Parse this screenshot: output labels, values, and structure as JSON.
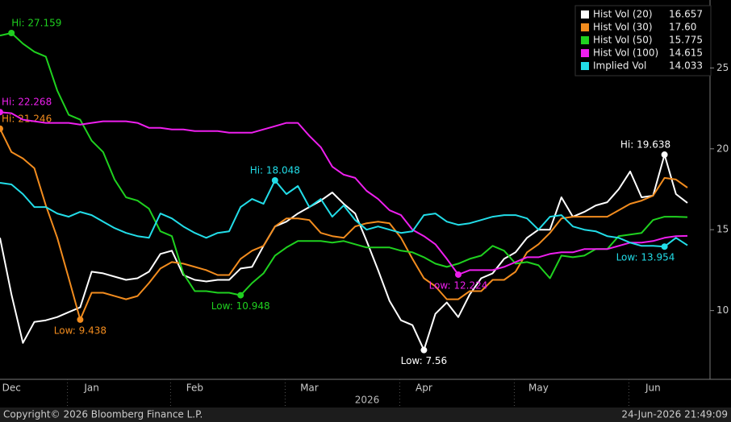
{
  "chart_data": {
    "type": "line",
    "categories": [
      null,
      "Dec",
      null,
      null,
      null,
      null,
      null,
      null,
      "Jan",
      null,
      null,
      null,
      null,
      null,
      null,
      null,
      null,
      "Feb",
      null,
      null,
      null,
      null,
      null,
      null,
      null,
      null,
      null,
      "Mar",
      null,
      null,
      null,
      null,
      null,
      null,
      null,
      null,
      null,
      "Apr",
      null,
      null,
      null,
      null,
      null,
      null,
      null,
      null,
      null,
      "May",
      null,
      null,
      null,
      null,
      null,
      null,
      null,
      null,
      null,
      "Jun",
      null,
      null,
      null
    ],
    "x_label": "2026",
    "ylim": [
      5.8,
      29.2
    ],
    "yticks": [
      10,
      15,
      20,
      25
    ],
    "grid": false,
    "legend": "top-right",
    "series": [
      {
        "name": "Hist Vol (20)",
        "color": "#ffffff",
        "legend_value": "16.657",
        "values": [
          14.5,
          11.0,
          8.0,
          9.3,
          9.4,
          9.6,
          9.9,
          10.2,
          12.4,
          12.3,
          12.1,
          11.9,
          12.0,
          12.4,
          13.5,
          13.7,
          12.2,
          11.9,
          11.8,
          11.9,
          11.9,
          12.6,
          12.7,
          14.0,
          15.2,
          15.5,
          16.0,
          16.4,
          16.8,
          17.3,
          16.6,
          16.0,
          14.3,
          12.5,
          10.6,
          9.4,
          9.1,
          7.56,
          9.8,
          10.5,
          9.6,
          11.0,
          12.0,
          12.3,
          13.2,
          13.6,
          14.5,
          15.0,
          15.0,
          17.0,
          15.8,
          16.1,
          16.5,
          16.7,
          17.5,
          18.6,
          17.0,
          17.1,
          19.638,
          17.2,
          16.657
        ],
        "value_labels": [
          null,
          null,
          null,
          null,
          null,
          null,
          null,
          null,
          null,
          null,
          null,
          null,
          null,
          null,
          null,
          null,
          null,
          null,
          null,
          null,
          null,
          null,
          null,
          null,
          null,
          null,
          null,
          null,
          null,
          null,
          null,
          null,
          null,
          null,
          null,
          null,
          null,
          "Low: 7.56",
          null,
          null,
          null,
          null,
          null,
          null,
          null,
          null,
          null,
          null,
          null,
          null,
          null,
          null,
          null,
          null,
          null,
          null,
          null,
          null,
          "Hi: 19.638",
          null,
          null
        ]
      },
      {
        "name": "Hist Vol (30)",
        "color": "#f28c1e",
        "legend_value": "17.60",
        "values": [
          21.246,
          19.8,
          19.4,
          18.8,
          16.5,
          14.5,
          12.0,
          9.438,
          11.1,
          11.1,
          10.9,
          10.7,
          10.9,
          11.7,
          12.6,
          13.0,
          12.9,
          12.7,
          12.5,
          12.2,
          12.2,
          13.2,
          13.7,
          14.0,
          15.2,
          15.7,
          15.7,
          15.6,
          14.8,
          14.6,
          14.5,
          15.2,
          15.4,
          15.5,
          15.4,
          14.5,
          13.2,
          12.0,
          11.5,
          10.7,
          10.7,
          11.2,
          11.2,
          11.9,
          11.9,
          12.4,
          13.6,
          14.1,
          14.8,
          15.7,
          15.8,
          15.8,
          15.8,
          15.8,
          16.2,
          16.6,
          16.8,
          17.1,
          18.2,
          18.1,
          17.6
        ],
        "value_labels": [
          "Hi: 21.246",
          null,
          null,
          null,
          null,
          null,
          null,
          "Low: 9.438",
          null,
          null,
          null,
          null,
          null,
          null,
          null,
          null,
          null,
          null,
          null,
          null,
          null,
          null,
          null,
          null,
          null,
          null,
          null,
          null,
          null,
          null,
          null,
          null,
          null,
          null,
          null,
          null,
          null,
          null,
          null,
          null,
          null,
          null,
          null,
          null,
          null,
          null,
          null,
          null,
          null,
          null,
          null,
          null,
          null,
          null,
          null,
          null,
          null,
          null,
          null,
          null,
          null
        ]
      },
      {
        "name": "Hist Vol (50)",
        "color": "#1fd11f",
        "legend_value": "15.775",
        "values": [
          27.0,
          27.159,
          26.5,
          26.0,
          25.7,
          23.6,
          22.1,
          21.8,
          20.5,
          19.8,
          18.1,
          17.0,
          16.8,
          16.3,
          14.9,
          14.6,
          12.3,
          11.2,
          11.2,
          11.1,
          11.1,
          10.948,
          11.7,
          12.3,
          13.4,
          13.9,
          14.3,
          14.3,
          14.3,
          14.2,
          14.3,
          14.1,
          13.9,
          13.9,
          13.9,
          13.7,
          13.6,
          13.3,
          12.9,
          12.7,
          12.9,
          13.2,
          13.4,
          14.0,
          13.7,
          12.9,
          13.0,
          12.8,
          12.0,
          13.4,
          13.3,
          13.4,
          13.8,
          13.8,
          14.6,
          14.7,
          14.8,
          15.6,
          15.8,
          15.8,
          15.775
        ],
        "value_labels": [
          null,
          "Hi: 27.159",
          null,
          null,
          null,
          null,
          null,
          null,
          null,
          null,
          null,
          null,
          null,
          null,
          null,
          null,
          null,
          null,
          null,
          null,
          null,
          "Low: 10.948",
          null,
          null,
          null,
          null,
          null,
          null,
          null,
          null,
          null,
          null,
          null,
          null,
          null,
          null,
          null,
          null,
          null,
          null,
          null,
          null,
          null,
          null,
          null,
          null,
          null,
          null,
          null,
          null,
          null,
          null,
          null,
          null,
          null,
          null,
          null,
          null,
          null,
          null,
          null
        ]
      },
      {
        "name": "Hist Vol (100)",
        "color": "#ee1fee",
        "legend_value": "14.615",
        "values": [
          22.268,
          22.2,
          21.8,
          21.7,
          21.6,
          21.6,
          21.6,
          21.5,
          21.6,
          21.7,
          21.7,
          21.7,
          21.6,
          21.3,
          21.3,
          21.2,
          21.2,
          21.1,
          21.1,
          21.1,
          21.0,
          21.0,
          21.0,
          21.2,
          21.4,
          21.6,
          21.6,
          20.8,
          20.1,
          18.9,
          18.4,
          18.2,
          17.4,
          16.9,
          16.2,
          15.9,
          15.0,
          14.6,
          14.1,
          13.2,
          12.224,
          12.5,
          12.5,
          12.5,
          12.7,
          13.0,
          13.3,
          13.3,
          13.5,
          13.6,
          13.6,
          13.8,
          13.8,
          13.8,
          14.0,
          14.2,
          14.2,
          14.3,
          14.5,
          14.6,
          14.615
        ],
        "value_labels": [
          "Hi: 22.268",
          null,
          null,
          null,
          null,
          null,
          null,
          null,
          null,
          null,
          null,
          null,
          null,
          null,
          null,
          null,
          null,
          null,
          null,
          null,
          null,
          null,
          null,
          null,
          null,
          null,
          null,
          null,
          null,
          null,
          null,
          null,
          null,
          null,
          null,
          null,
          null,
          null,
          null,
          null,
          "Low: 12.224",
          null,
          null,
          null,
          null,
          null,
          null,
          null,
          null,
          null,
          null,
          null,
          null,
          null,
          null,
          null,
          null,
          null,
          null,
          null,
          null
        ]
      },
      {
        "name": "Implied Vol",
        "color": "#22dde8",
        "legend_value": "14.033",
        "values": [
          17.9,
          17.8,
          17.2,
          16.4,
          16.4,
          16.0,
          15.8,
          16.1,
          15.9,
          15.5,
          15.1,
          14.8,
          14.6,
          14.5,
          16.0,
          15.7,
          15.2,
          14.8,
          14.5,
          14.8,
          14.9,
          16.4,
          16.9,
          16.6,
          18.048,
          17.2,
          17.7,
          16.4,
          16.9,
          15.8,
          16.5,
          15.6,
          15.0,
          15.2,
          15.0,
          14.8,
          14.9,
          15.9,
          16.0,
          15.5,
          15.3,
          15.4,
          15.6,
          15.8,
          15.9,
          15.9,
          15.7,
          15.0,
          15.8,
          15.9,
          15.2,
          15.0,
          14.9,
          14.6,
          14.5,
          14.2,
          14.0,
          14.0,
          13.954,
          14.5,
          14.033
        ],
        "value_labels": [
          null,
          null,
          null,
          null,
          null,
          null,
          null,
          null,
          null,
          null,
          null,
          null,
          null,
          null,
          null,
          null,
          null,
          null,
          null,
          null,
          null,
          null,
          null,
          null,
          "Hi: 18.048",
          null,
          null,
          null,
          null,
          null,
          null,
          null,
          null,
          null,
          null,
          null,
          null,
          null,
          null,
          null,
          null,
          null,
          null,
          null,
          null,
          null,
          null,
          null,
          null,
          null,
          null,
          null,
          null,
          null,
          null,
          null,
          null,
          null,
          "Low: 13.954",
          null,
          null
        ]
      }
    ]
  },
  "footer": {
    "copyright": "Copyright© 2026 Bloomberg Finance L.P.",
    "timestamp": "24-Jun-2026 21:49:09"
  }
}
